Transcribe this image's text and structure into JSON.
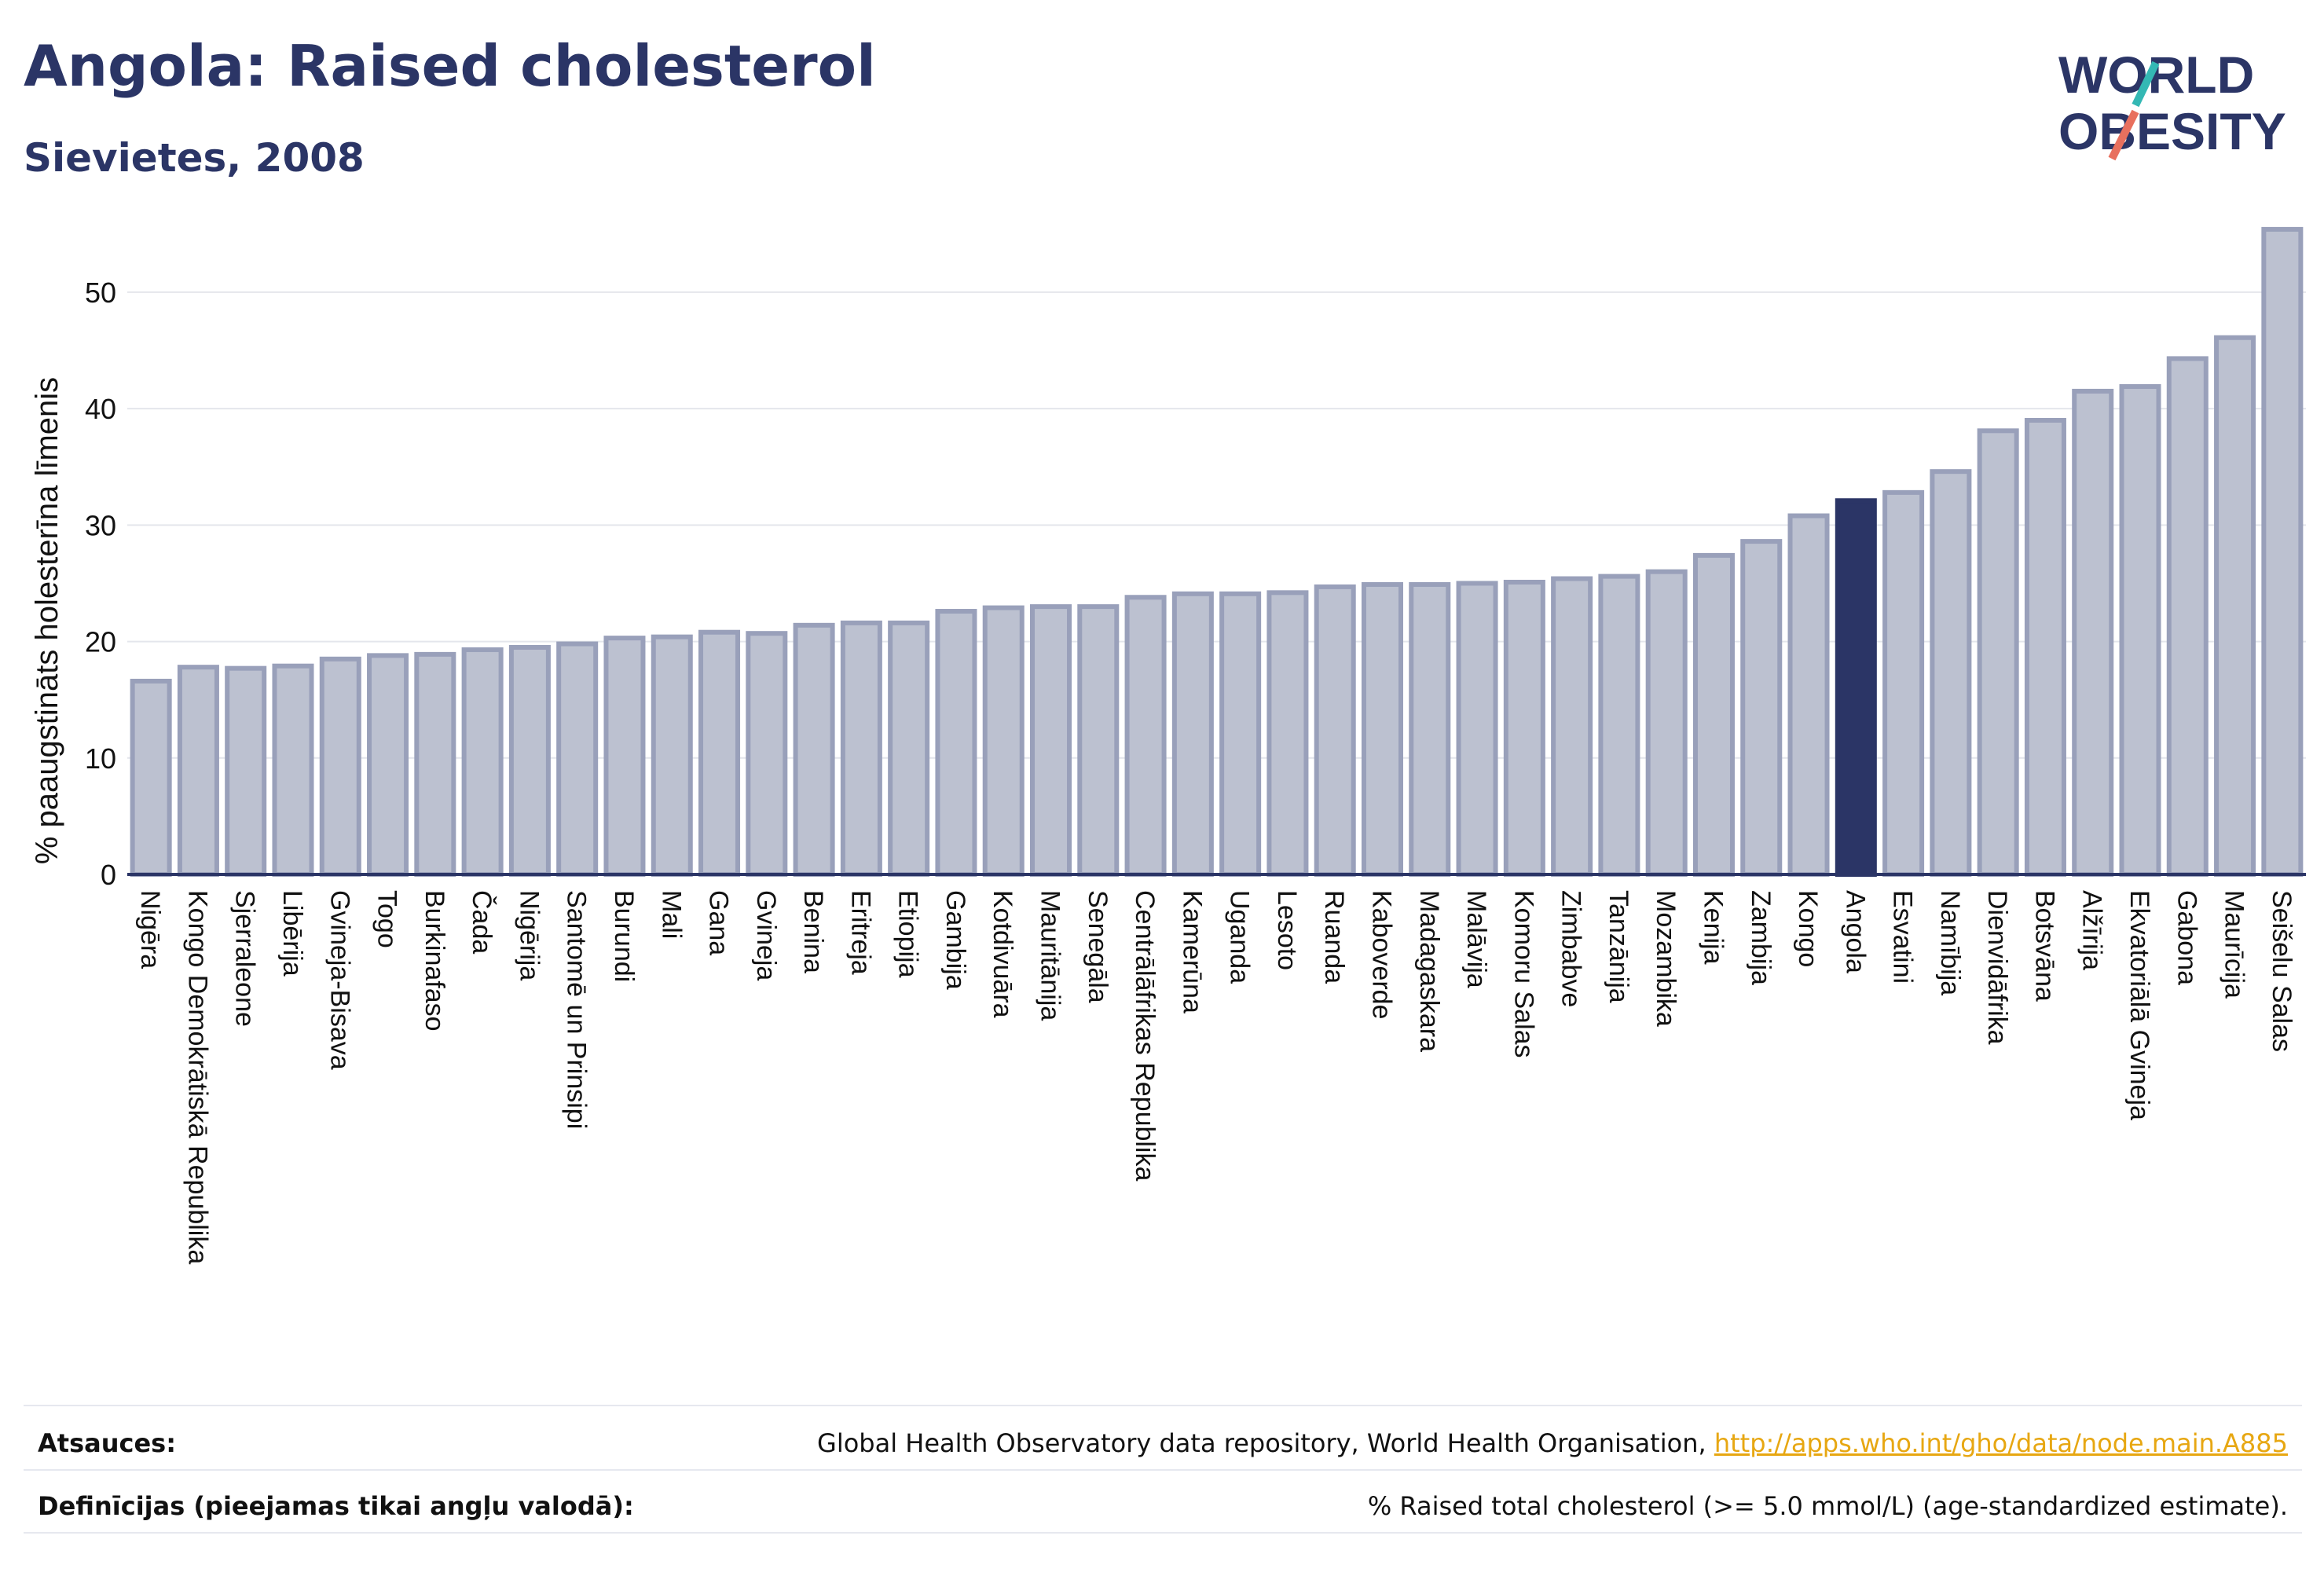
{
  "title": "Angola: Raised cholesterol",
  "subtitle": "Sievietes, 2008",
  "logo": {
    "line1": "WORLD",
    "line2": "OBESITY"
  },
  "colors": {
    "bar": "#bcc1d0",
    "bar_edge": "#99a0ba",
    "highlight": "#2b3566",
    "grid": "#e4e6ec",
    "text": "#2b3566"
  },
  "chart_data": {
    "type": "bar",
    "ylabel": "% paaugstināts holesterīna līmenis",
    "ylim": [
      0,
      56
    ],
    "yticks": [
      0,
      10,
      20,
      30,
      40,
      50
    ],
    "highlight": "Angola",
    "categories": [
      "Nigēra",
      "Kongo Demokrātiskā Republika",
      "Sjerraleone",
      "Libērija",
      "Gvineja-Bisava",
      "Togo",
      "Burkinafaso",
      "Čada",
      "Nigērija",
      "Santomē un Prinsipi",
      "Burundi",
      "Mali",
      "Gana",
      "Gvineja",
      "Benina",
      "Eritreja",
      "Etiopija",
      "Gambija",
      "Kotdivuāra",
      "Mauritānija",
      "Senegāla",
      "Centrālāfrikas Republika",
      "Kamerūna",
      "Uganda",
      "Lesoto",
      "Ruanda",
      "Kaboverde",
      "Madagaskara",
      "Malāvija",
      "Komoru Salas",
      "Zimbabve",
      "Tanzānija",
      "Mozambika",
      "Kenija",
      "Zambija",
      "Kongo",
      "Angola",
      "Esvatini",
      "Namībija",
      "Dienvidāfrika",
      "Botsvāna",
      "Alžīrija",
      "Ekvatoriālā Gvineja",
      "Gabona",
      "Maurīcija",
      "Seišelu Salas"
    ],
    "values": [
      16.6,
      17.8,
      17.7,
      17.9,
      18.5,
      18.8,
      18.9,
      19.3,
      19.5,
      19.8,
      20.3,
      20.4,
      20.8,
      20.7,
      21.4,
      21.6,
      21.6,
      22.6,
      22.9,
      23.0,
      23.0,
      23.8,
      24.1,
      24.1,
      24.2,
      24.7,
      24.9,
      24.9,
      25.0,
      25.1,
      25.4,
      25.6,
      26.0,
      27.4,
      28.6,
      30.8,
      32.1,
      32.8,
      34.6,
      38.1,
      39.0,
      41.5,
      41.9,
      44.3,
      46.1,
      55.4
    ],
    "grid": true
  },
  "footer": {
    "sources_label": "Atsauces:",
    "sources_text": "Global Health Observatory data repository, World Health Organisation, ",
    "sources_link": "http://apps.who.int/gho/data/node.main.A885",
    "definitions_label": "Definīcijas (pieejamas tikai angļu valodā):",
    "definitions_text": "% Raised total cholesterol (>= 5.0 mmol/L) (age-standardized estimate)."
  }
}
